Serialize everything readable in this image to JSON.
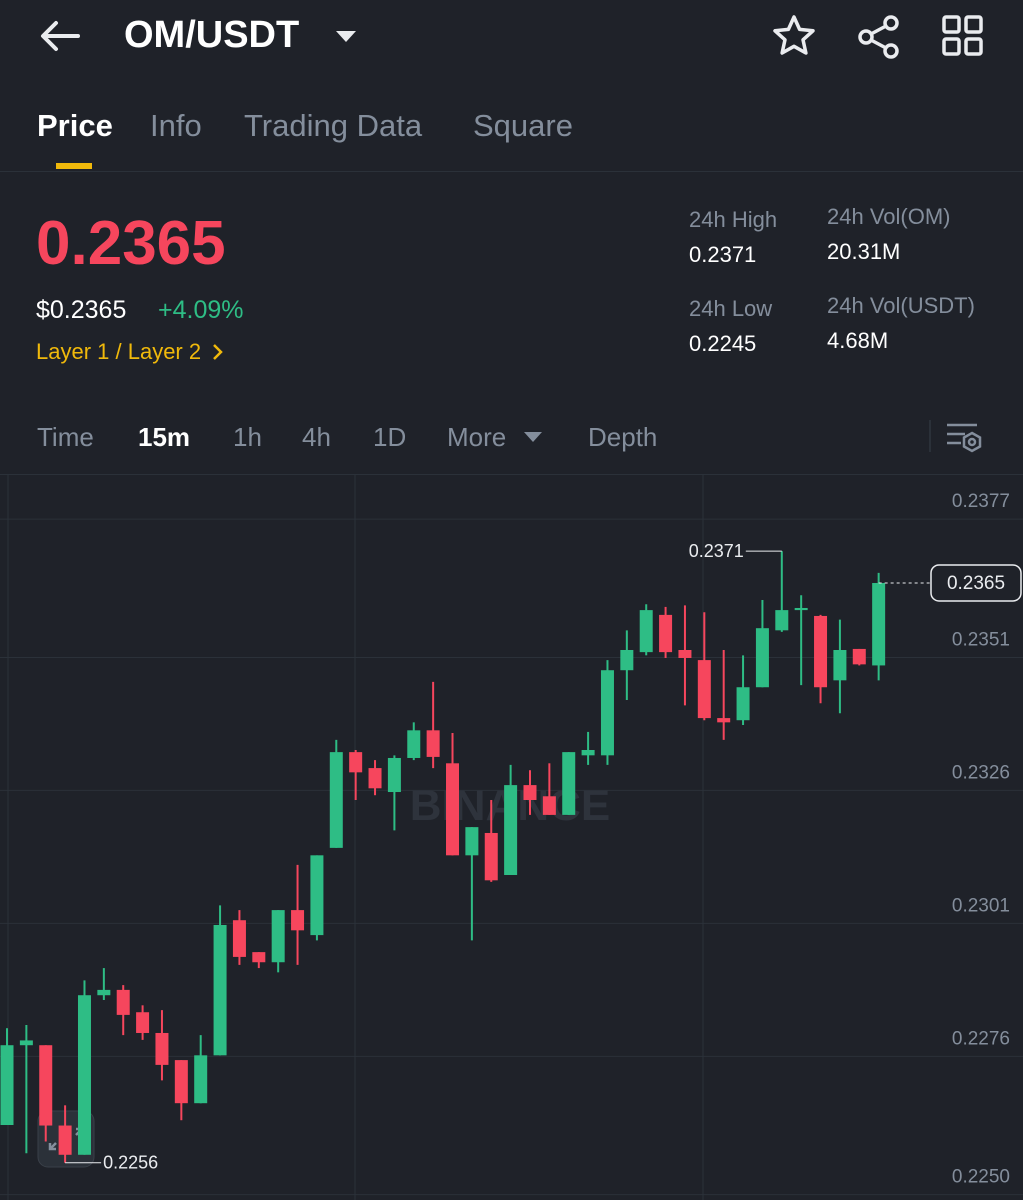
{
  "header": {
    "pair": "OM/USDT"
  },
  "tabs": [
    "Price",
    "Info",
    "Trading Data",
    "Square"
  ],
  "price": {
    "last": "0.2365",
    "usd": "$0.2365",
    "change": "+4.09%",
    "category": "Layer 1 / Layer 2"
  },
  "stats": [
    {
      "label": "24h High",
      "value": "0.2371"
    },
    {
      "label": "24h Vol(OM)",
      "value": "20.31M"
    },
    {
      "label": "24h Low",
      "value": "0.2245"
    },
    {
      "label": "24h Vol(USDT)",
      "value": "4.68M"
    }
  ],
  "intervals": [
    "Time",
    "15m",
    "1h",
    "4h",
    "1D",
    "More",
    "Depth"
  ],
  "chart_data": {
    "type": "candlestick",
    "watermark": "BINANCE",
    "up_color": "#2ebd85",
    "down_color": "#f6465d",
    "grid": true,
    "ylim": [
      0.2249,
      0.23853
    ],
    "yticks": [
      0.2377,
      0.2351,
      0.2326,
      0.2301,
      0.2276,
      {
        "value": 0.225,
        "label": "0.2250"
      }
    ],
    "open": [
      0.22631,
      0.22781,
      0.22781,
      0.2263,
      0.22575,
      0.22875,
      0.22885,
      0.22843,
      0.22804,
      0.22753,
      0.22672,
      0.22762,
      0.23016,
      0.22956,
      0.22937,
      0.23035,
      0.22988,
      0.23152,
      0.23332,
      0.23302,
      0.23257,
      0.23321,
      0.23373,
      0.23311,
      0.23138,
      0.2318,
      0.23101,
      0.2327,
      0.23249,
      0.23214,
      0.23326,
      0.23326,
      0.23486,
      0.2352,
      0.2359,
      0.23524,
      0.23505,
      0.23396,
      0.23392,
      0.23454,
      0.23561,
      0.23599,
      0.23588,
      0.23467,
      0.23526,
      0.23495
    ],
    "high": [
      0.22813,
      0.22819,
      0.22781,
      0.22668,
      0.22903,
      0.22926,
      0.22894,
      0.22856,
      0.22847,
      0.22753,
      0.228,
      0.23044,
      0.23035,
      0.22956,
      0.23035,
      0.2312,
      0.23138,
      0.23355,
      0.23336,
      0.23317,
      0.23326,
      0.23388,
      0.23464,
      0.23368,
      0.23191,
      0.23242,
      0.23308,
      0.23298,
      0.23311,
      0.23332,
      0.2337,
      0.23505,
      0.23561,
      0.2361,
      0.23605,
      0.23608,
      0.23595,
      0.23524,
      0.23514,
      0.23618,
      0.2371,
      0.23627,
      0.2359,
      0.23581,
      0.23526,
      0.23669
    ],
    "low": [
      0.22631,
      0.22578,
      0.226,
      0.2256,
      0.22575,
      0.22866,
      0.228,
      0.22791,
      0.22715,
      0.2264,
      0.22672,
      0.22762,
      0.22932,
      0.22926,
      0.22918,
      0.22932,
      0.22978,
      0.23152,
      0.23242,
      0.23251,
      0.23185,
      0.23317,
      0.23302,
      0.23138,
      0.22978,
      0.23088,
      0.23101,
      0.23214,
      0.23214,
      0.23214,
      0.23308,
      0.23308,
      0.2343,
      0.23514,
      0.23509,
      0.2342,
      0.23392,
      0.23355,
      0.23383,
      0.23454,
      0.23558,
      0.23458,
      0.23424,
      0.23405,
      0.23495,
      0.23467
    ],
    "close": [
      0.22781,
      0.2279,
      0.2263,
      0.22575,
      0.22875,
      0.22885,
      0.22838,
      0.22804,
      0.22744,
      0.22672,
      0.22762,
      0.23007,
      0.22947,
      0.22937,
      0.23035,
      0.22997,
      0.23138,
      0.23332,
      0.23294,
      0.23264,
      0.23321,
      0.23373,
      0.23323,
      0.23138,
      0.23191,
      0.23091,
      0.2327,
      0.23242,
      0.23214,
      0.23332,
      0.23336,
      0.23486,
      0.23524,
      0.23599,
      0.2352,
      0.23509,
      0.23396,
      0.23388,
      0.23454,
      0.23565,
      0.23599,
      0.23603,
      0.23454,
      0.23524,
      0.23497,
      0.2365
    ],
    "high_marker": {
      "index": 40,
      "value": 0.2371
    },
    "low_marker": {
      "index": 3,
      "value": 0.2256
    },
    "last_price": 0.2365
  }
}
